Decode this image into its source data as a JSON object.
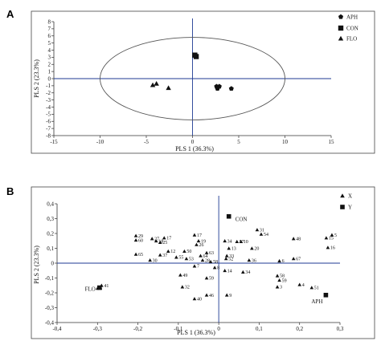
{
  "chart_data": [
    {
      "panel": "A",
      "type": "scatter",
      "xlabel": "PLS 1 (36.3%)",
      "ylabel": "PLS 2 (23.3%)",
      "xlim": [
        -15,
        15
      ],
      "ylim": [
        -8,
        8
      ],
      "xticks": [
        -15,
        -10,
        -5,
        0,
        5,
        10,
        15
      ],
      "yticks": [
        -8,
        -7,
        -6,
        -5,
        -4,
        -3,
        -2,
        -1,
        0,
        1,
        2,
        3,
        4,
        5,
        6,
        7,
        8
      ],
      "legend_position": "top-right",
      "ellipse": {
        "cx": 0,
        "cy": 0,
        "rx": 10,
        "ry": 5.8
      },
      "series": [
        {
          "name": "APH",
          "marker": "pentagon",
          "points": [
            [
              2.6,
              -1.1
            ],
            [
              2.7,
              -1.4
            ],
            [
              2.9,
              -1.1
            ],
            [
              4.2,
              -1.4
            ]
          ]
        },
        {
          "name": "CON",
          "marker": "square",
          "points": [
            [
              0.25,
              3.3
            ],
            [
              0.4,
              3.1
            ]
          ]
        },
        {
          "name": "FLO",
          "marker": "triangle",
          "points": [
            [
              -4.3,
              -0.9
            ],
            [
              -3.9,
              -0.7
            ],
            [
              -2.6,
              -1.3
            ]
          ]
        }
      ]
    },
    {
      "panel": "B",
      "type": "scatter",
      "xlabel": "PLS 1 (36.3%)",
      "ylabel": "PLS 2 (23.3%)",
      "xlim": [
        -0.4,
        0.3
      ],
      "ylim": [
        -0.4,
        0.4
      ],
      "xticks": [
        "-0,4",
        "-0,3",
        "-0,2",
        "-0,1",
        "0",
        "0,1",
        "0,2",
        "0,3"
      ],
      "yticks": [
        "-0,4",
        "-0,3",
        "-0,2",
        "-0,1",
        "0",
        "0,1",
        "0,2",
        "0,3",
        "0,4"
      ],
      "legend_position": "top-right",
      "series": [
        {
          "name": "X",
          "marker": "triangle",
          "points": [
            {
              "x": 0.28,
              "y": 0.19,
              "label": "5"
            },
            {
              "x": 0.266,
              "y": 0.17,
              "label": "15"
            },
            {
              "x": 0.27,
              "y": 0.105,
              "label": "16"
            },
            {
              "x": 0.185,
              "y": 0.165,
              "label": "48"
            },
            {
              "x": 0.095,
              "y": 0.225,
              "label": "31"
            },
            {
              "x": 0.105,
              "y": 0.195,
              "label": "54"
            },
            {
              "x": 0.185,
              "y": 0.03,
              "label": "67"
            },
            {
              "x": 0.15,
              "y": 0.015,
              "label": "6"
            },
            {
              "x": 0.082,
              "y": 0.1,
              "label": "20"
            },
            {
              "x": 0.075,
              "y": 0.02,
              "label": "36"
            },
            {
              "x": 0.055,
              "y": 0.145,
              "label": "10"
            },
            {
              "x": 0.045,
              "y": 0.145,
              "label": "57"
            },
            {
              "x": 0.015,
              "y": 0.15,
              "label": "34"
            },
            {
              "x": 0.025,
              "y": 0.1,
              "label": "13"
            },
            {
              "x": 0.02,
              "y": 0.05,
              "label": "33"
            },
            {
              "x": 0.018,
              "y": 0.03,
              "label": "52"
            },
            {
              "x": 0.015,
              "y": -0.05,
              "label": "14"
            },
            {
              "x": 0.06,
              "y": -0.06,
              "label": "34"
            },
            {
              "x": 0.145,
              "y": -0.085,
              "label": "58"
            },
            {
              "x": 0.15,
              "y": -0.115,
              "label": "59"
            },
            {
              "x": 0.2,
              "y": -0.145,
              "label": "4"
            },
            {
              "x": 0.145,
              "y": -0.16,
              "label": "3"
            },
            {
              "x": 0.23,
              "y": -0.165,
              "label": "51"
            },
            {
              "x": 0.02,
              "y": -0.215,
              "label": "9"
            },
            {
              "x": -0.03,
              "y": -0.1,
              "label": "59"
            },
            {
              "x": -0.03,
              "y": -0.215,
              "label": "46"
            },
            {
              "x": -0.06,
              "y": -0.24,
              "label": "40"
            },
            {
              "x": -0.09,
              "y": -0.16,
              "label": "32"
            },
            {
              "x": -0.095,
              "y": -0.08,
              "label": "49"
            },
            {
              "x": -0.205,
              "y": 0.185,
              "label": "29"
            },
            {
              "x": -0.165,
              "y": 0.165,
              "label": "27"
            },
            {
              "x": -0.135,
              "y": 0.17,
              "label": "17"
            },
            {
              "x": -0.205,
              "y": 0.155,
              "label": "60"
            },
            {
              "x": -0.155,
              "y": 0.15,
              "label": "18"
            },
            {
              "x": -0.145,
              "y": 0.14,
              "label": "25"
            },
            {
              "x": -0.06,
              "y": 0.19,
              "label": "17"
            },
            {
              "x": -0.05,
              "y": 0.15,
              "label": "19"
            },
            {
              "x": -0.055,
              "y": 0.125,
              "label": "26"
            },
            {
              "x": -0.085,
              "y": 0.08,
              "label": "50"
            },
            {
              "x": -0.125,
              "y": 0.08,
              "label": "12"
            },
            {
              "x": -0.145,
              "y": 0.055,
              "label": "37"
            },
            {
              "x": -0.205,
              "y": 0.06,
              "label": "65"
            },
            {
              "x": -0.17,
              "y": 0.02,
              "label": "30"
            },
            {
              "x": -0.105,
              "y": 0.04,
              "label": "55"
            },
            {
              "x": -0.08,
              "y": 0.03,
              "label": "53"
            },
            {
              "x": -0.045,
              "y": 0.05,
              "label": "64"
            },
            {
              "x": -0.04,
              "y": 0.02,
              "label": "28"
            },
            {
              "x": -0.02,
              "y": 0.01,
              "label": "58"
            },
            {
              "x": -0.03,
              "y": 0.07,
              "label": "63"
            },
            {
              "x": -0.06,
              "y": -0.02,
              "label": "7"
            },
            {
              "x": -0.01,
              "y": -0.03,
              "label": "8"
            },
            {
              "x": -0.29,
              "y": -0.15,
              "label": "41"
            },
            {
              "x": -0.3,
              "y": -0.17,
              "label": "5"
            }
          ]
        },
        {
          "name": "Y",
          "marker": "square",
          "points": [
            {
              "x": 0.025,
              "y": 0.315,
              "label": "CON"
            },
            {
              "x": -0.295,
              "y": -0.165,
              "label": "FLO"
            },
            {
              "x": 0.265,
              "y": -0.215,
              "label": "APH"
            }
          ]
        }
      ]
    }
  ]
}
